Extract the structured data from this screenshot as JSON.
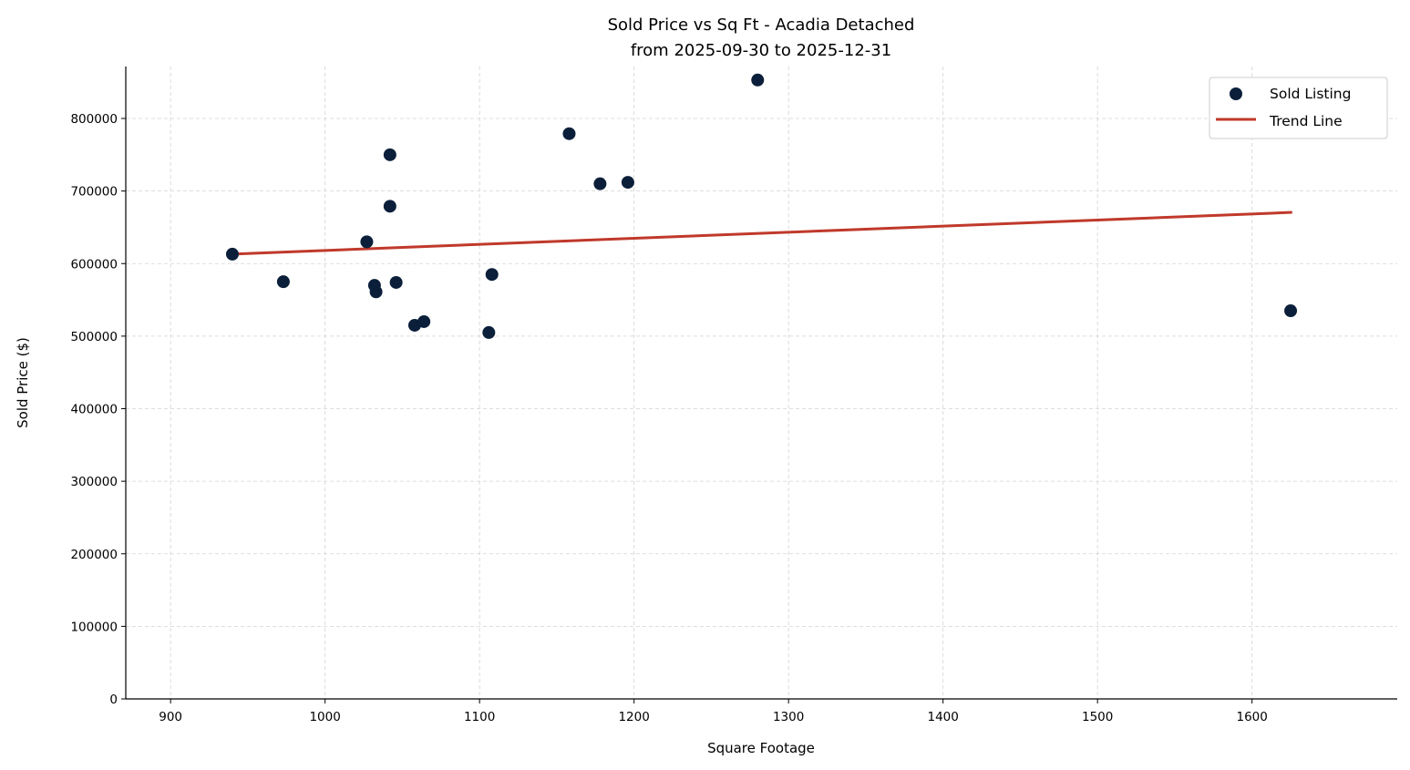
{
  "chart_data": {
    "type": "scatter",
    "title": "Sold Price vs Sq Ft - Acadia Detached",
    "subtitle": "from 2025-09-30 to 2025-12-31",
    "xlabel": "Square Footage",
    "ylabel": "Sold Price ($)",
    "xlim": [
      871,
      1694
    ],
    "ylim": [
      0,
      871600
    ],
    "xticks": [
      900,
      1000,
      1100,
      1200,
      1300,
      1400,
      1500,
      1600
    ],
    "yticks": [
      0,
      100000,
      200000,
      300000,
      400000,
      500000,
      600000,
      700000,
      800000
    ],
    "grid": true,
    "legend_position": "top-right",
    "series": [
      {
        "name": "Sold Listing",
        "kind": "scatter",
        "color": "#0b1f3a",
        "x": [
          940,
          973,
          1027,
          1032,
          1033,
          1042,
          1042,
          1046,
          1058,
          1064,
          1106,
          1108,
          1158,
          1178,
          1196,
          1280,
          1625
        ],
        "y": [
          613000,
          575000,
          630000,
          570000,
          561000,
          750000,
          679000,
          574000,
          515000,
          520000,
          505000,
          585000,
          779000,
          710000,
          712000,
          853000,
          535000
        ]
      },
      {
        "name": "Trend Line",
        "kind": "line",
        "color": "#c0392b",
        "x": [
          940,
          1626
        ],
        "y": [
          613000,
          670600
        ]
      }
    ]
  }
}
